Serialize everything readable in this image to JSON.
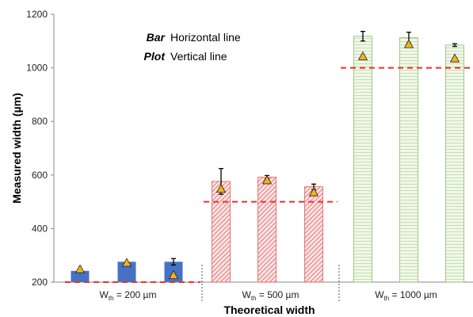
{
  "chart_data": {
    "type": "bar",
    "xlabel": "Theoretical width",
    "ylabel": "Measured width (µm)",
    "ylim": [
      200,
      1200
    ],
    "yticks": [
      200,
      400,
      600,
      800,
      1000,
      1200
    ],
    "grid": false,
    "legend": [
      {
        "key": "Bar",
        "text": "Horizontal line"
      },
      {
        "key": "Plot",
        "text": "Vertical line"
      }
    ],
    "groups": [
      {
        "label_main": "W",
        "label_sub": "th",
        "label_rest": " = 200 µm",
        "theoretical": 200,
        "bar_color": "#4472c4",
        "pattern": "solid",
        "bars": [
          {
            "value": 242,
            "error": 0,
            "marker": 248
          },
          {
            "value": 276,
            "error": 0,
            "marker": 272
          },
          {
            "value": 276,
            "error": 12,
            "marker": 226
          }
        ]
      },
      {
        "label_main": "W",
        "label_sub": "th",
        "label_rest": " = 500 µm",
        "theoretical": 500,
        "bar_color": "#e05a5a",
        "pattern": "hatch-red",
        "bars": [
          {
            "value": 576,
            "error": 48,
            "marker": 548
          },
          {
            "value": 592,
            "error": 6,
            "marker": 580
          },
          {
            "value": 556,
            "error": 10,
            "marker": 535
          }
        ]
      },
      {
        "label_main": "W",
        "label_sub": "th",
        "label_rest": " = 1000 µm",
        "theoretical": 1000,
        "bar_color": "#8fbc6a",
        "pattern": "hatch-green",
        "bars": [
          {
            "value": 1118,
            "error": 18,
            "marker": 1043
          },
          {
            "value": 1113,
            "error": 20,
            "marker": 1088
          },
          {
            "value": 1085,
            "error": 5,
            "marker": 1035
          }
        ]
      }
    ],
    "colors": {
      "reference_line": "#e8332a",
      "marker_fill": "#f2b21b",
      "marker_stroke": "#222222"
    }
  }
}
